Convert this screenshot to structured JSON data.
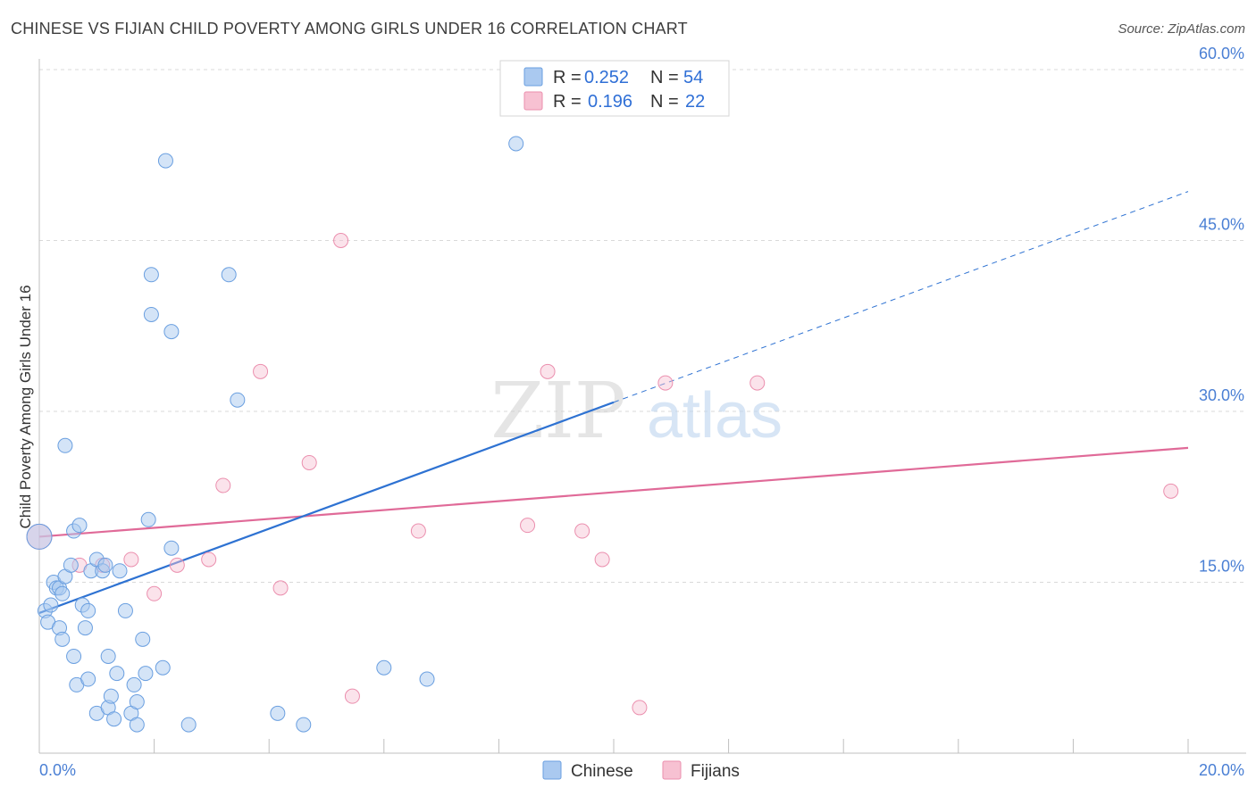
{
  "header": {
    "title": "CHINESE VS FIJIAN CHILD POVERTY AMONG GIRLS UNDER 16 CORRELATION CHART",
    "source": "Source: ZipAtlas.com"
  },
  "watermark": {
    "zip": "ZIP",
    "atlas": "atlas"
  },
  "legend_top": {
    "rows": [
      {
        "r_label": "R =",
        "r_value": "0.252",
        "n_label": "N =",
        "n_value": "54"
      },
      {
        "r_label": "R =",
        "r_value": "0.196",
        "n_label": "N =",
        "n_value": "22"
      }
    ]
  },
  "legend_bottom": {
    "chinese": "Chinese",
    "fijians": "Fijians"
  },
  "colors": {
    "chinese_fill": "#aac9f0",
    "chinese_stroke": "#6a9fe0",
    "chinese_line": "#2e72d2",
    "fijian_fill": "#f7c1d2",
    "fijian_stroke": "#eb8fae",
    "fijian_line": "#e06a98",
    "grid": "#d9d9d9",
    "axis_label": "#4a7fd4"
  },
  "chart_data": {
    "type": "scatter",
    "title": "CHINESE VS FIJIAN CHILD POVERTY AMONG GIRLS UNDER 16 CORRELATION CHART",
    "xlabel": "",
    "ylabel": "Child Poverty Among Girls Under 16",
    "xlim": [
      0,
      20
    ],
    "ylim": [
      0,
      60
    ],
    "x_tick_labels": [
      "0.0%",
      "20.0%"
    ],
    "y_ticks": [
      15,
      30,
      45,
      60
    ],
    "y_tick_labels": [
      "15.0%",
      "30.0%",
      "45.0%",
      "60.0%"
    ],
    "grid": true,
    "series": [
      {
        "name": "Chinese",
        "R": 0.252,
        "N": 54,
        "points": [
          [
            0.0,
            19.0
          ],
          [
            0.1,
            12.5
          ],
          [
            0.15,
            11.5
          ],
          [
            0.2,
            13.0
          ],
          [
            0.25,
            15.0
          ],
          [
            0.3,
            14.5
          ],
          [
            0.35,
            14.5
          ],
          [
            0.35,
            11.0
          ],
          [
            0.4,
            10.0
          ],
          [
            0.4,
            14.0
          ],
          [
            0.45,
            27.0
          ],
          [
            0.45,
            15.5
          ],
          [
            0.55,
            16.5
          ],
          [
            0.6,
            19.5
          ],
          [
            0.6,
            8.5
          ],
          [
            0.65,
            6.0
          ],
          [
            0.7,
            20.0
          ],
          [
            0.75,
            13.0
          ],
          [
            0.8,
            11.0
          ],
          [
            0.85,
            6.5
          ],
          [
            0.85,
            12.5
          ],
          [
            0.9,
            16.0
          ],
          [
            1.0,
            3.5
          ],
          [
            1.0,
            17.0
          ],
          [
            1.1,
            16.0
          ],
          [
            1.15,
            16.5
          ],
          [
            1.2,
            4.0
          ],
          [
            1.2,
            8.5
          ],
          [
            1.25,
            5.0
          ],
          [
            1.3,
            3.0
          ],
          [
            1.35,
            7.0
          ],
          [
            1.4,
            16.0
          ],
          [
            1.5,
            12.5
          ],
          [
            1.6,
            3.5
          ],
          [
            1.65,
            6.0
          ],
          [
            1.7,
            4.5
          ],
          [
            1.7,
            2.5
          ],
          [
            1.8,
            10.0
          ],
          [
            1.85,
            7.0
          ],
          [
            1.9,
            20.5
          ],
          [
            1.95,
            38.5
          ],
          [
            1.95,
            42.0
          ],
          [
            2.15,
            7.5
          ],
          [
            2.2,
            52.0
          ],
          [
            2.3,
            37.0
          ],
          [
            2.3,
            18.0
          ],
          [
            2.6,
            2.5
          ],
          [
            3.3,
            42.0
          ],
          [
            3.45,
            31.0
          ],
          [
            4.15,
            3.5
          ],
          [
            4.6,
            2.5
          ],
          [
            6.0,
            7.5
          ],
          [
            6.75,
            6.5
          ],
          [
            8.3,
            53.5
          ]
        ],
        "trend_solid": [
          [
            0.0,
            12.3
          ],
          [
            10.0,
            30.8
          ]
        ],
        "trend_dashed": [
          [
            10.0,
            30.8
          ],
          [
            20.0,
            49.3
          ]
        ]
      },
      {
        "name": "Fijians",
        "R": 0.196,
        "N": 22,
        "points": [
          [
            0.0,
            19.0
          ],
          [
            0.7,
            16.5
          ],
          [
            1.1,
            16.5
          ],
          [
            1.6,
            17.0
          ],
          [
            2.0,
            14.0
          ],
          [
            2.4,
            16.5
          ],
          [
            2.95,
            17.0
          ],
          [
            3.2,
            23.5
          ],
          [
            3.85,
            33.5
          ],
          [
            4.2,
            14.5
          ],
          [
            4.7,
            25.5
          ],
          [
            5.25,
            45.0
          ],
          [
            5.45,
            5.0
          ],
          [
            6.6,
            19.5
          ],
          [
            8.5,
            20.0
          ],
          [
            8.85,
            33.5
          ],
          [
            9.45,
            19.5
          ],
          [
            9.8,
            17.0
          ],
          [
            10.45,
            4.0
          ],
          [
            10.9,
            32.5
          ],
          [
            12.5,
            32.5
          ],
          [
            19.7,
            23.0
          ]
        ],
        "trend_solid": [
          [
            0.0,
            19.0
          ],
          [
            20.0,
            26.8
          ]
        ]
      }
    ]
  }
}
